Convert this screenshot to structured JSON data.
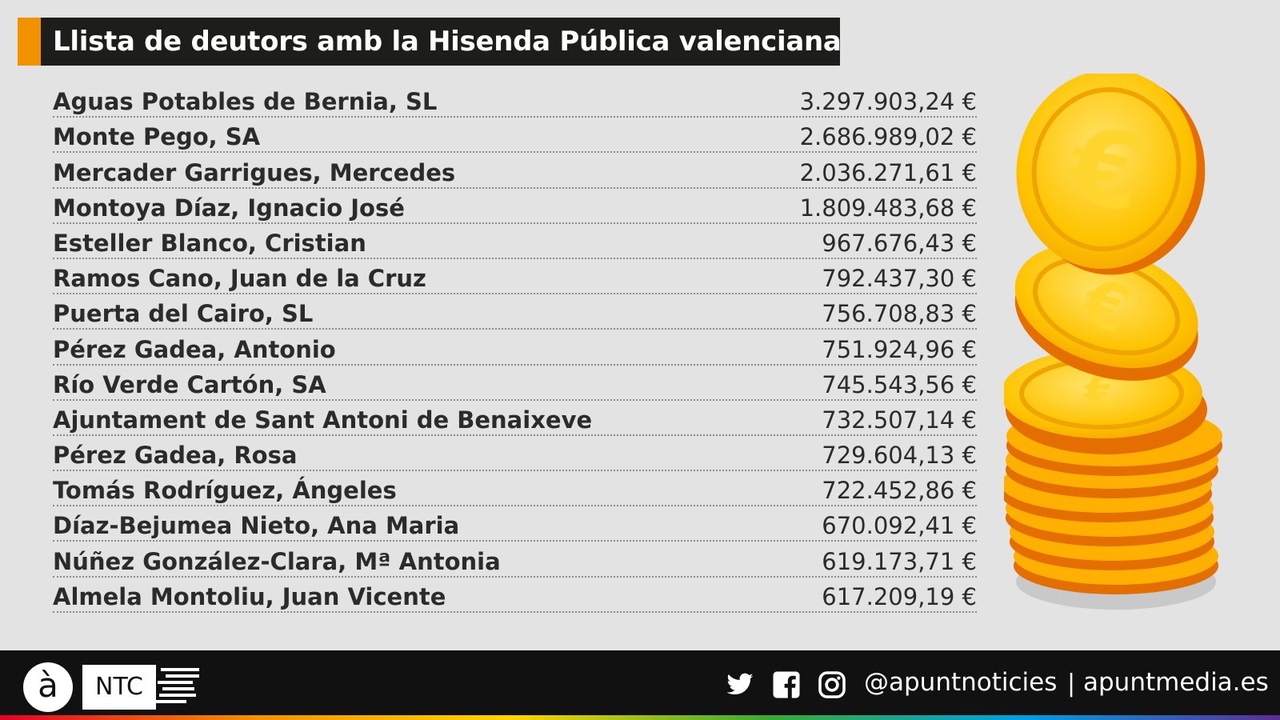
{
  "title": "Llista de deutors amb la Hisenda Pública valenciana",
  "debtors": [
    {
      "name": "Aguas Potables de Bernia, SL",
      "amount": "3.297.903,24 €"
    },
    {
      "name": "Monte Pego, SA",
      "amount": "2.686.989,02 €"
    },
    {
      "name": "Mercader Garrigues, Mercedes",
      "amount": "2.036.271,61 €"
    },
    {
      "name": "Montoya Díaz, Ignacio José",
      "amount": "1.809.483,68 €"
    },
    {
      "name": "Esteller Blanco, Cristian",
      "amount": "967.676,43 €"
    },
    {
      "name": "Ramos Cano, Juan de la Cruz",
      "amount": "792.437,30 €"
    },
    {
      "name": "Puerta del Cairo, SL",
      "amount": "756.708,83 €"
    },
    {
      "name": "Pérez Gadea, Antonio",
      "amount": "751.924,96 €"
    },
    {
      "name": "Río Verde Cartón, SA",
      "amount": "745.543,56 €"
    },
    {
      "name": "Ajuntament de Sant Antoni de Benaixeve",
      "amount": "732.507,14 €"
    },
    {
      "name": "Pérez Gadea, Rosa",
      "amount": "729.604,13 €"
    },
    {
      "name": "Tomás Rodríguez, Ángeles",
      "amount": "722.452,86 €"
    },
    {
      "name": "Díaz-Bejumea Nieto, Ana Maria",
      "amount": "670.092,41 €"
    },
    {
      "name": "Núñez González-Clara, Mª Antonia",
      "amount": "619.173,71 €"
    },
    {
      "name": "Almela Montoliu, Juan Vicente",
      "amount": "617.209,19 €"
    }
  ],
  "footer": {
    "logo": "à",
    "brand": "NTC",
    "icons": [
      "twitter-icon",
      "facebook-icon",
      "instagram-icon"
    ],
    "handle": "@apuntnoticies",
    "separator": "|",
    "website": "apuntmedia.es"
  },
  "colors": {
    "accent": "#f39200",
    "title_bg": "#1d1d1b",
    "background": "#e3e3e3",
    "footer_bg": "#111111"
  }
}
